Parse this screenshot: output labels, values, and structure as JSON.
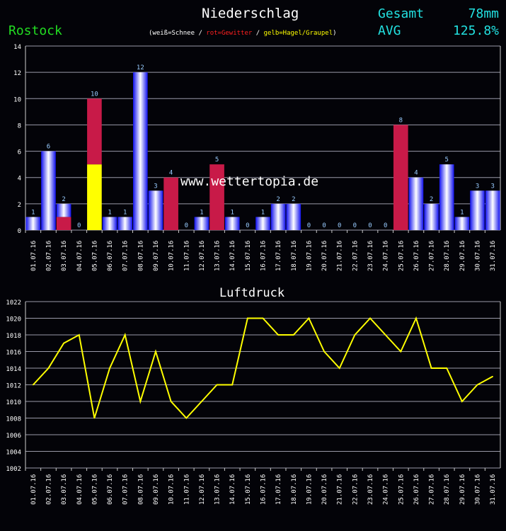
{
  "header": {
    "title": "Niederschlag",
    "location": "Rostock",
    "legend_white": "(weiß=Schnee /",
    "legend_red": "rot=Gewitter",
    "legend_sep": "/",
    "legend_yellow": "gelb=Hagel/Graupel",
    "legend_close": ")",
    "total_label": "Gesamt",
    "total_value": "78mm",
    "avg_label": "AVG",
    "avg_value": "125.8%"
  },
  "colors": {
    "rain": "#1010ee",
    "thunder": "#c81a48",
    "hail": "#ffff00",
    "line": "#ffff00",
    "location": "#22dd22",
    "stats": "#22e0e0"
  },
  "chart_data": [
    {
      "type": "bar",
      "title": "Niederschlag",
      "watermark": "www.wettertopia.de",
      "categories": [
        "01.07.16",
        "02.07.16",
        "03.07.16",
        "04.07.16",
        "05.07.16",
        "06.07.16",
        "07.07.16",
        "08.07.16",
        "09.07.16",
        "10.07.16",
        "11.07.16",
        "12.07.16",
        "13.07.16",
        "14.07.16",
        "15.07.16",
        "16.07.16",
        "17.07.16",
        "18.07.16",
        "19.07.16",
        "20.07.16",
        "21.07.16",
        "22.07.16",
        "23.07.16",
        "24.07.16",
        "25.07.16",
        "26.07.16",
        "27.07.16",
        "28.07.16",
        "29.07.16",
        "30.07.16",
        "31.07.16"
      ],
      "values": [
        1,
        6,
        2,
        0,
        10,
        1,
        1,
        12,
        3,
        4,
        0,
        1,
        5,
        1,
        0,
        1,
        2,
        2,
        0,
        0,
        0,
        0,
        0,
        0,
        8,
        4,
        2,
        5,
        1,
        3,
        3
      ],
      "thunder": [
        0,
        0,
        1,
        0,
        5,
        0,
        0,
        0,
        0,
        4,
        0,
        0,
        5,
        0,
        0,
        0,
        0,
        0,
        0,
        0,
        0,
        0,
        0,
        0,
        8,
        0,
        0,
        0,
        0,
        0,
        0
      ],
      "hail": [
        0,
        0,
        0,
        0,
        5,
        0,
        0,
        0,
        0,
        0,
        0,
        0,
        0,
        0,
        0,
        0,
        0,
        0,
        0,
        0,
        0,
        0,
        0,
        0,
        0,
        0,
        0,
        0,
        0,
        0,
        0
      ],
      "ylim": [
        0,
        14
      ],
      "yticks": [
        0,
        2,
        4,
        6,
        8,
        10,
        12,
        14
      ]
    },
    {
      "type": "line",
      "title": "Luftdruck",
      "categories": [
        "01.07.16",
        "02.07.16",
        "03.07.16",
        "04.07.16",
        "05.07.16",
        "06.07.16",
        "07.07.16",
        "08.07.16",
        "09.07.16",
        "10.07.16",
        "11.07.16",
        "12.07.16",
        "13.07.16",
        "14.07.16",
        "15.07.16",
        "16.07.16",
        "17.07.16",
        "18.07.16",
        "19.07.16",
        "20.07.16",
        "21.07.16",
        "22.07.16",
        "23.07.16",
        "24.07.16",
        "25.07.16",
        "26.07.16",
        "27.07.16",
        "28.07.16",
        "29.07.16",
        "30.07.16",
        "31.07.16"
      ],
      "values": [
        1012,
        1014,
        1017,
        1018,
        1008,
        1014,
        1018,
        1010,
        1016,
        1010,
        1008,
        1010,
        1012,
        1012,
        1020,
        1020,
        1018,
        1018,
        1020,
        1016,
        1014,
        1018,
        1020,
        1018,
        1016,
        1020,
        1014,
        1014,
        1010,
        1012,
        1013
      ],
      "ylim": [
        1002,
        1022
      ],
      "yticks": [
        1002,
        1004,
        1006,
        1008,
        1010,
        1012,
        1014,
        1016,
        1018,
        1020,
        1022
      ]
    }
  ]
}
